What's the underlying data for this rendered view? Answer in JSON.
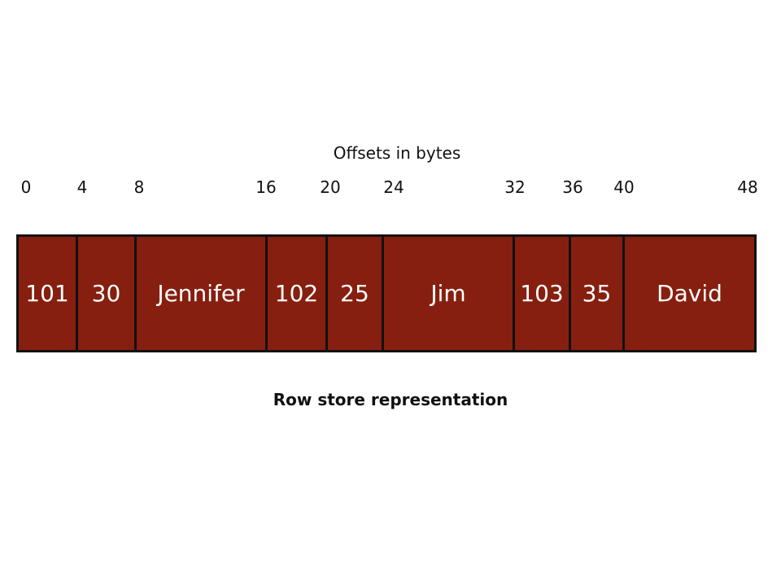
{
  "diagram": {
    "axis_title": "Offsets in bytes",
    "offsets": [
      "0",
      "4",
      "8",
      "16",
      "20",
      "24",
      "32",
      "36",
      "40",
      "48"
    ],
    "cells": [
      {
        "value": "101",
        "start": 0,
        "end": 4
      },
      {
        "value": "30",
        "start": 4,
        "end": 8
      },
      {
        "value": "Jennifer",
        "start": 8,
        "end": 16
      },
      {
        "value": "102",
        "start": 16,
        "end": 20
      },
      {
        "value": "25",
        "start": 20,
        "end": 24
      },
      {
        "value": "Jim",
        "start": 24,
        "end": 32
      },
      {
        "value": "103",
        "start": 32,
        "end": 36
      },
      {
        "value": "35",
        "start": 36,
        "end": 40
      },
      {
        "value": "David",
        "start": 40,
        "end": 48
      }
    ],
    "caption": "Row store representation",
    "colors": {
      "cell_fill": "#861f0f",
      "cell_border": "#111111",
      "cell_text": "#ffffff"
    }
  }
}
